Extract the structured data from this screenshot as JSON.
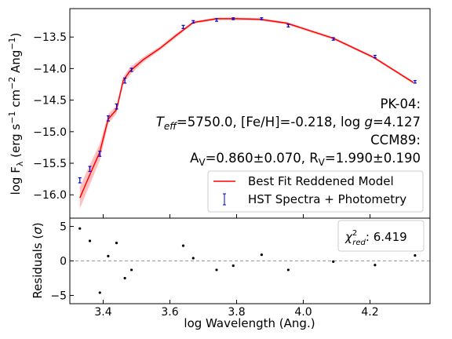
{
  "chart_data": [
    {
      "type": "line",
      "panel": "sed",
      "xlim": [
        3.3,
        4.38
      ],
      "ylim": [
        -16.37,
        -13.05
      ],
      "ylabel": "log Fλ (erg s⁻¹ cm⁻² Ang⁻¹)",
      "ylabel_parts": {
        "main": "log F",
        "sub": "λ",
        "rest1": " (erg s",
        "sup1": "−1",
        "rest2": " cm",
        "sup2": "−2",
        "rest3": " Ang",
        "sup3": "−1",
        "rest4": ")"
      },
      "yticks": [
        -16.0,
        -15.5,
        -15.0,
        -14.5,
        -14.0,
        -13.5
      ],
      "ytick_labels": [
        "−16.0",
        "−15.5",
        "−15.0",
        "−14.5",
        "−14.0",
        "−13.5"
      ],
      "series": [
        {
          "name": "Best Fit Reddened Model",
          "color": "#ff0000",
          "x": [
            3.33,
            3.36,
            3.39,
            3.415,
            3.44,
            3.46,
            3.48,
            3.52,
            3.57,
            3.62,
            3.67,
            3.74,
            3.8,
            3.87,
            3.95,
            4.09,
            4.21,
            4.33
          ],
          "y": [
            -16.05,
            -15.68,
            -15.32,
            -14.8,
            -14.65,
            -14.19,
            -14.04,
            -13.86,
            -13.68,
            -13.47,
            -13.27,
            -13.21,
            -13.21,
            -13.22,
            -13.28,
            -13.52,
            -13.82,
            -14.22
          ],
          "band_halfwidth": [
            0.17,
            0.16,
            0.13,
            0.08,
            0.06,
            0.06,
            0.06,
            0.04,
            0.03,
            0.03,
            0.02,
            0.02,
            0.02,
            0.02,
            0.02,
            0.02,
            0.02,
            0.02
          ]
        },
        {
          "name": "HST Spectra + Photometry",
          "color": "#0000cc",
          "marker": "errorbar",
          "x": [
            3.33,
            3.36,
            3.39,
            3.415,
            3.44,
            3.465,
            3.485,
            3.64,
            3.67,
            3.74,
            3.79,
            3.875,
            3.955,
            4.09,
            4.215,
            4.335
          ],
          "y": [
            -15.77,
            -15.59,
            -15.35,
            -14.79,
            -14.6,
            -14.19,
            -14.02,
            -13.34,
            -13.26,
            -13.23,
            -13.21,
            -13.21,
            -13.32,
            -13.53,
            -13.81,
            -14.21
          ],
          "yerr": [
            0.04,
            0.04,
            0.04,
            0.04,
            0.04,
            0.04,
            0.025,
            0.025,
            0.02,
            0.02,
            0.015,
            0.015,
            0.02,
            0.02,
            0.02,
            0.02
          ]
        }
      ],
      "legend": {
        "position": "lower-right",
        "entries": [
          "Best Fit Reddened Model",
          "HST Spectra + Photometry"
        ]
      },
      "annotations": {
        "star": "PK-04:",
        "params": {
          "teff_symbol": "T",
          "teff_sub": "eff",
          "teff_rest": "=5750.0, [Fe/H]=-0.218, log ",
          "g_symbol": "g",
          "g_rest": "=4.127"
        },
        "law": "CCM89:",
        "ext": {
          "a": "A",
          "a_sub": "V",
          "a_rest": "=0.860±0.070, R",
          "r_sub": "V",
          "r_rest": "=1.990±0.190"
        }
      }
    },
    {
      "type": "scatter",
      "panel": "residuals",
      "xlim": [
        3.3,
        4.38
      ],
      "ylim": [
        -6.2,
        6.2
      ],
      "xlabel": "log Wavelength (Ang.)",
      "ylabel": "Residuals (σ)",
      "ylabel_parts": {
        "main": "Residuals (",
        "sym": "σ",
        "rest": ")"
      },
      "xticks": [
        3.4,
        3.6,
        3.8,
        4.0,
        4.2
      ],
      "xtick_labels": [
        "3.4",
        "3.6",
        "3.8",
        "4.0",
        "4.2"
      ],
      "yticks": [
        -5,
        0,
        5
      ],
      "ytick_labels": [
        "−5",
        "0",
        "5"
      ],
      "zero_line": true,
      "series": [
        {
          "color": "#000000",
          "x": [
            3.33,
            3.36,
            3.39,
            3.415,
            3.44,
            3.465,
            3.485,
            3.64,
            3.67,
            3.74,
            3.79,
            3.875,
            3.955,
            4.09,
            4.215,
            4.335
          ],
          "y": [
            4.7,
            2.9,
            -4.6,
            0.7,
            2.6,
            -2.5,
            -1.3,
            2.2,
            0.4,
            -1.3,
            -0.7,
            0.9,
            -1.3,
            -0.1,
            -0.6,
            0.8
          ]
        }
      ],
      "chi2": {
        "symbol": "χ",
        "sup": "2",
        "sub": "red",
        "rest": ": 6.419"
      }
    }
  ]
}
